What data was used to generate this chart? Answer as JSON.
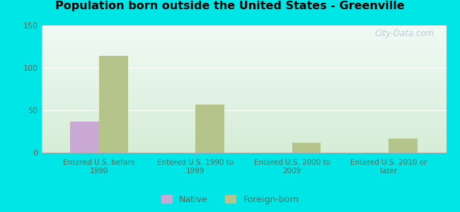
{
  "title": "Population born outside the United States - Greenville",
  "categories": [
    "Entered U.S. before\n1990",
    "Entered U.S. 1990 to\n1999",
    "Entered U.S. 2000 to\n2009",
    "Entered U.S. 2010 or\nlater"
  ],
  "native_values": [
    37,
    0,
    0,
    0
  ],
  "foreign_values": [
    114,
    57,
    12,
    17
  ],
  "native_color": "#c9a8d4",
  "foreign_color": "#b5c48a",
  "ylim": [
    0,
    150
  ],
  "yticks": [
    0,
    50,
    100,
    150
  ],
  "background_color": "#00e5e5",
  "bar_width": 0.3,
  "watermark": "City-Data.com",
  "legend_native": "Native",
  "legend_foreign": "Foreign-born",
  "tick_label_color": "#556655",
  "grid_color": "#ddddcc"
}
